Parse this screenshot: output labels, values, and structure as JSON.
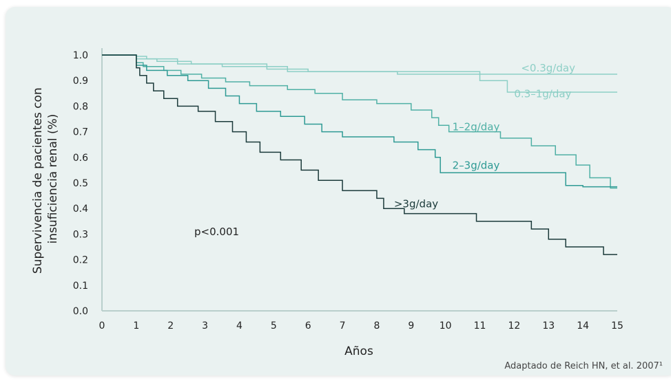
{
  "chart_data": {
    "type": "line",
    "step": true,
    "xlabel": "Años",
    "ylabel_lines": [
      "Supervivencia de pacientes con",
      "insuficiencia renal (%)"
    ],
    "xlim": [
      0,
      15
    ],
    "ylim": [
      0,
      1.0
    ],
    "x_ticks": [
      "0",
      "1",
      "2",
      "3",
      "4",
      "5",
      "6",
      "7",
      "8",
      "9",
      "10",
      "11",
      "12",
      "13",
      "14",
      "15"
    ],
    "y_ticks": [
      "0.0",
      "0.1",
      "0.2",
      "0.3",
      "0.4",
      "0.5",
      "0.6",
      "0.7",
      "0.8",
      "0.9",
      "1.0"
    ],
    "grid": false,
    "annotation": "p<0.001",
    "source": "Adaptado de Reich HN, et al. 2007¹",
    "series": [
      {
        "name": "<0.3g/day",
        "color": "#8dcfc6",
        "x": [
          0,
          1,
          1.3,
          2.2,
          3.5,
          5.4,
          8.6,
          15
        ],
        "y": [
          1.0,
          0.995,
          0.985,
          0.965,
          0.955,
          0.935,
          0.925,
          0.925
        ]
      },
      {
        "name": "0.3–1g/day",
        "color": "#8dcfc6",
        "x": [
          0,
          1,
          1.6,
          2.6,
          4.8,
          6.0,
          11.0,
          11.8,
          15
        ],
        "y": [
          1.0,
          0.985,
          0.975,
          0.965,
          0.945,
          0.935,
          0.9,
          0.855,
          0.855
        ]
      },
      {
        "name": "1–2g/day",
        "color": "#4fb0a5",
        "x": [
          0,
          1,
          1.2,
          1.8,
          2.3,
          2.9,
          3.6,
          4.3,
          5.4,
          6.2,
          7.0,
          8.0,
          9.0,
          9.6,
          9.8,
          10.1,
          11.6,
          12.5,
          13.2,
          13.8,
          14.2,
          14.8,
          15
        ],
        "y": [
          1.0,
          0.97,
          0.955,
          0.94,
          0.925,
          0.91,
          0.895,
          0.88,
          0.865,
          0.85,
          0.825,
          0.81,
          0.785,
          0.755,
          0.725,
          0.7,
          0.675,
          0.645,
          0.61,
          0.57,
          0.52,
          0.48,
          0.48
        ]
      },
      {
        "name": "2–3g/day",
        "color": "#2e9a94",
        "x": [
          0,
          1,
          1.3,
          1.9,
          2.5,
          3.1,
          3.6,
          4.0,
          4.5,
          5.2,
          5.9,
          6.4,
          7.0,
          8.5,
          9.2,
          9.7,
          9.85,
          11.0,
          12.0,
          13.5,
          14.0,
          15
        ],
        "y": [
          1.0,
          0.96,
          0.94,
          0.92,
          0.9,
          0.87,
          0.84,
          0.81,
          0.78,
          0.76,
          0.73,
          0.7,
          0.68,
          0.66,
          0.63,
          0.6,
          0.54,
          0.54,
          0.54,
          0.49,
          0.485,
          0.485
        ]
      },
      {
        "name": ">3g/day",
        "color": "#1b3a3a",
        "x": [
          0,
          1,
          1.1,
          1.3,
          1.5,
          1.8,
          2.2,
          2.8,
          3.3,
          3.8,
          4.2,
          4.6,
          5.2,
          5.8,
          6.3,
          7.0,
          8.0,
          8.2,
          8.8,
          9.8,
          10.9,
          12.0,
          12.5,
          13.0,
          13.5,
          14.6,
          15
        ],
        "y": [
          1.0,
          0.95,
          0.92,
          0.89,
          0.86,
          0.83,
          0.8,
          0.78,
          0.74,
          0.7,
          0.66,
          0.62,
          0.59,
          0.55,
          0.51,
          0.47,
          0.44,
          0.4,
          0.38,
          0.38,
          0.35,
          0.35,
          0.32,
          0.28,
          0.25,
          0.22,
          0.22
        ]
      }
    ],
    "labels": [
      {
        "text": "<0.3g/day",
        "color": "#8dcfc6",
        "at_x": 12.2,
        "at_y": 0.935
      },
      {
        "text": "0.3–1g/day",
        "color": "#8dcfc6",
        "at_x": 12.0,
        "at_y": 0.835
      },
      {
        "text": "1–2g/day",
        "color": "#4fb0a5",
        "at_x": 10.2,
        "at_y": 0.705
      },
      {
        "text": "2–3g/day",
        "color": "#2e9a94",
        "at_x": 10.2,
        "at_y": 0.555
      },
      {
        "text": ">3g/day",
        "color": "#1b3a3a",
        "at_x": 8.5,
        "at_y": 0.405
      }
    ]
  }
}
